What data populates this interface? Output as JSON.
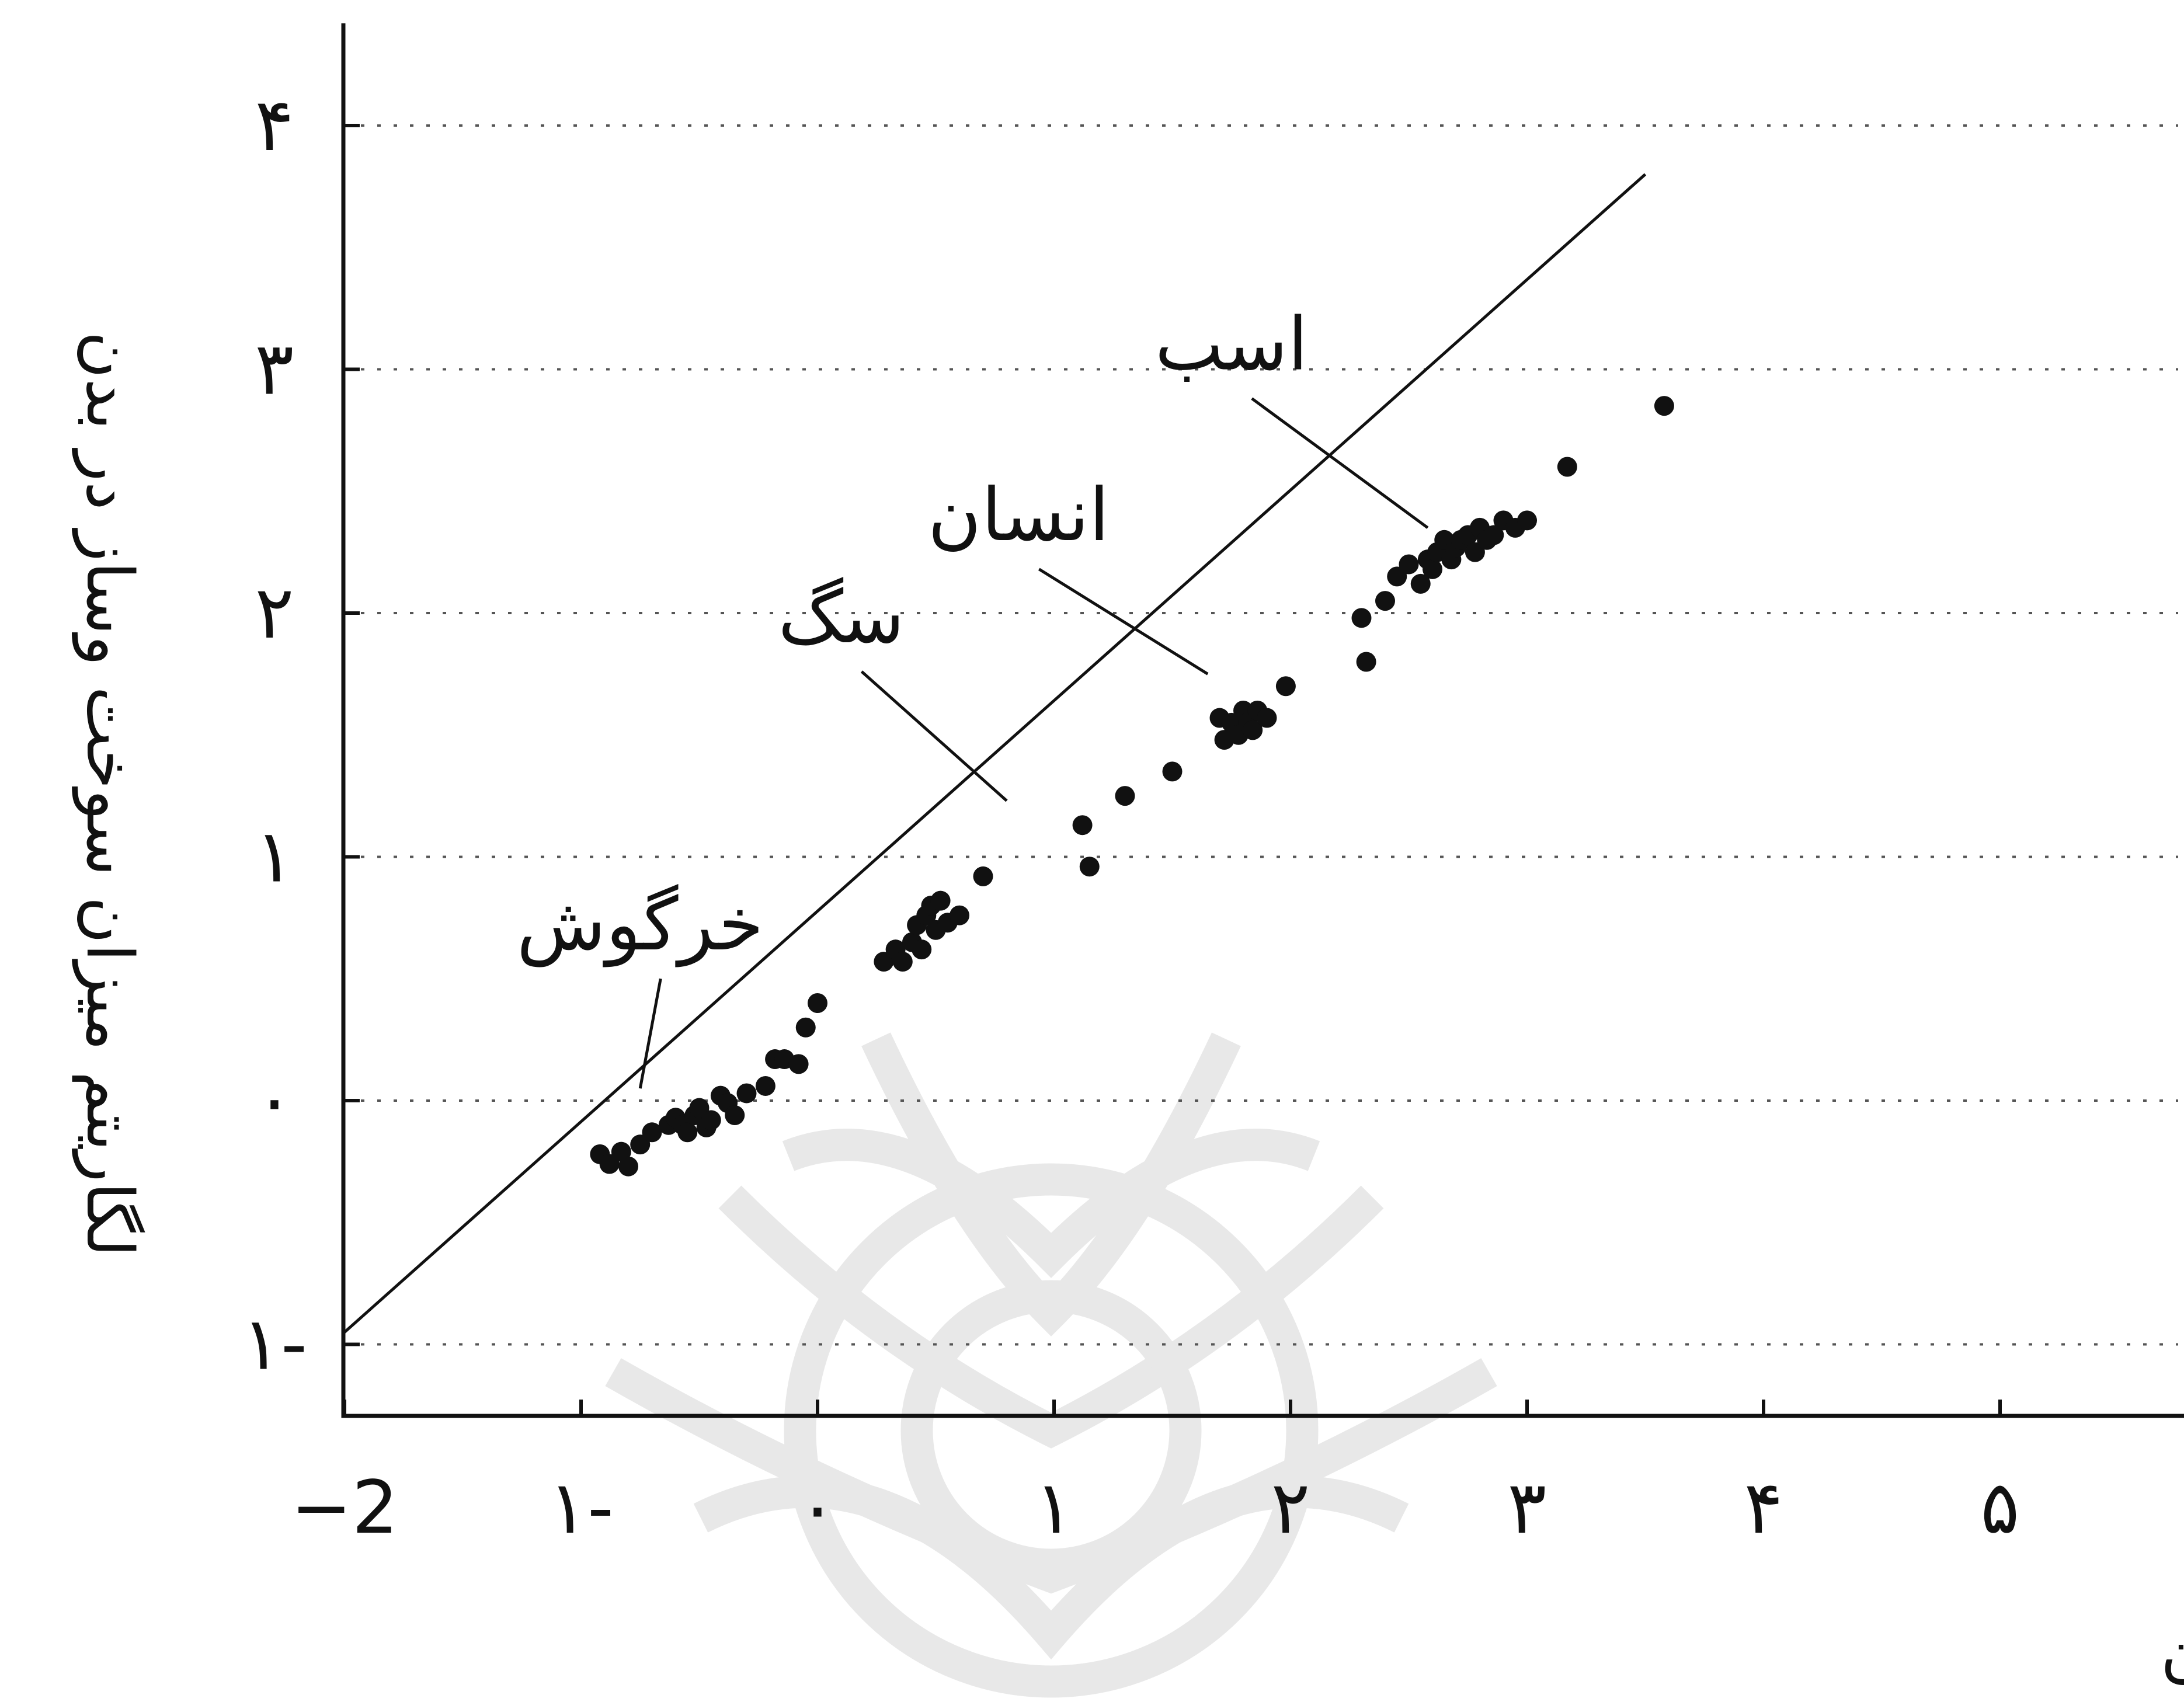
{
  "chart_data": {
    "type": "scatter",
    "title": "",
    "xlabel": "لگاریتم وزن بدن",
    "ylabel": "لگاریتم میزان سوخت وساز در بدن",
    "xlim": [
      -2,
      5.7
    ],
    "ylim": [
      -1.28,
      4.4
    ],
    "xticks": [
      -2,
      -1,
      0,
      1,
      2,
      3,
      4,
      5
    ],
    "xtick_labels": [
      "−2",
      "۱-",
      "۰",
      "۱",
      "۲",
      "۳",
      "۴",
      "۵"
    ],
    "yticks": [
      -1,
      0,
      1,
      2,
      3,
      4
    ],
    "ytick_labels": [
      "۱-",
      "۰",
      "۱",
      "۲",
      "۳",
      "۴"
    ],
    "grid": "horizontal dotted",
    "fit_line": {
      "x": [
        -2,
        3.5
      ],
      "y": [
        -0.95,
        3.8
      ]
    },
    "points": [
      {
        "x": -0.92,
        "y": -0.22
      },
      {
        "x": -0.88,
        "y": -0.26
      },
      {
        "x": -0.83,
        "y": -0.21
      },
      {
        "x": -0.8,
        "y": -0.27
      },
      {
        "x": -0.75,
        "y": -0.18
      },
      {
        "x": -0.7,
        "y": -0.13
      },
      {
        "x": -0.63,
        "y": -0.1
      },
      {
        "x": -0.6,
        "y": -0.07
      },
      {
        "x": -0.57,
        "y": -0.1
      },
      {
        "x": -0.55,
        "y": -0.13
      },
      {
        "x": -0.52,
        "y": -0.06
      },
      {
        "x": -0.5,
        "y": -0.03
      },
      {
        "x": -0.47,
        "y": -0.11
      },
      {
        "x": -0.45,
        "y": -0.08
      },
      {
        "x": -0.41,
        "y": 0.02
      },
      {
        "x": -0.38,
        "y": -0.01
      },
      {
        "x": -0.35,
        "y": -0.06
      },
      {
        "x": -0.3,
        "y": 0.03
      },
      {
        "x": -0.22,
        "y": 0.06
      },
      {
        "x": -0.18,
        "y": 0.17
      },
      {
        "x": -0.14,
        "y": 0.17
      },
      {
        "x": -0.08,
        "y": 0.15
      },
      {
        "x": -0.05,
        "y": 0.3
      },
      {
        "x": 0.0,
        "y": 0.4
      },
      {
        "x": 0.28,
        "y": 0.57
      },
      {
        "x": 0.33,
        "y": 0.62
      },
      {
        "x": 0.36,
        "y": 0.57
      },
      {
        "x": 0.4,
        "y": 0.65
      },
      {
        "x": 0.42,
        "y": 0.72
      },
      {
        "x": 0.44,
        "y": 0.62
      },
      {
        "x": 0.46,
        "y": 0.76
      },
      {
        "x": 0.48,
        "y": 0.8
      },
      {
        "x": 0.5,
        "y": 0.7
      },
      {
        "x": 0.52,
        "y": 0.82
      },
      {
        "x": 0.55,
        "y": 0.73
      },
      {
        "x": 0.6,
        "y": 0.76
      },
      {
        "x": 0.7,
        "y": 0.92
      },
      {
        "x": 1.12,
        "y": 1.13
      },
      {
        "x": 1.15,
        "y": 0.96
      },
      {
        "x": 1.3,
        "y": 1.25
      },
      {
        "x": 1.5,
        "y": 1.35
      },
      {
        "x": 1.7,
        "y": 1.57
      },
      {
        "x": 1.72,
        "y": 1.48
      },
      {
        "x": 1.75,
        "y": 1.55
      },
      {
        "x": 1.78,
        "y": 1.5
      },
      {
        "x": 1.8,
        "y": 1.6
      },
      {
        "x": 1.82,
        "y": 1.55
      },
      {
        "x": 1.84,
        "y": 1.52
      },
      {
        "x": 1.86,
        "y": 1.6
      },
      {
        "x": 1.9,
        "y": 1.57
      },
      {
        "x": 1.98,
        "y": 1.7
      },
      {
        "x": 2.3,
        "y": 1.98
      },
      {
        "x": 2.32,
        "y": 1.8
      },
      {
        "x": 2.4,
        "y": 2.05
      },
      {
        "x": 2.45,
        "y": 2.15
      },
      {
        "x": 2.5,
        "y": 2.2
      },
      {
        "x": 2.55,
        "y": 2.12
      },
      {
        "x": 2.58,
        "y": 2.22
      },
      {
        "x": 2.6,
        "y": 2.18
      },
      {
        "x": 2.62,
        "y": 2.25
      },
      {
        "x": 2.65,
        "y": 2.3
      },
      {
        "x": 2.68,
        "y": 2.22
      },
      {
        "x": 2.7,
        "y": 2.27
      },
      {
        "x": 2.72,
        "y": 2.3
      },
      {
        "x": 2.75,
        "y": 2.32
      },
      {
        "x": 2.78,
        "y": 2.25
      },
      {
        "x": 2.8,
        "y": 2.35
      },
      {
        "x": 2.83,
        "y": 2.3
      },
      {
        "x": 2.86,
        "y": 2.32
      },
      {
        "x": 2.9,
        "y": 2.38
      },
      {
        "x": 2.95,
        "y": 2.35
      },
      {
        "x": 3.0,
        "y": 2.38
      },
      {
        "x": 3.17,
        "y": 2.6
      },
      {
        "x": 3.58,
        "y": 2.85
      }
    ],
    "annotations": [
      {
        "text": "خرگوش",
        "x": -0.75,
        "y": 0.62,
        "line_to": [
          -0.75,
          0.05
        ]
      },
      {
        "text": "سگ",
        "x": 0.1,
        "y": 1.88,
        "line_to": [
          0.8,
          1.23
        ]
      },
      {
        "text": "انسان",
        "x": 0.85,
        "y": 2.3,
        "line_to": [
          1.65,
          1.75
        ]
      },
      {
        "text": "اسب",
        "x": 1.75,
        "y": 3.0,
        "line_to": [
          2.58,
          2.35
        ]
      }
    ]
  }
}
